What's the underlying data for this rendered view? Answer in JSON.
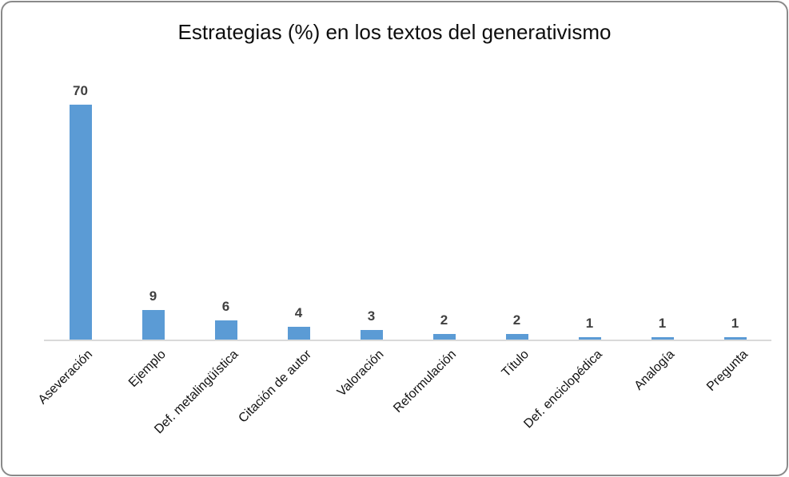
{
  "chart_data": {
    "type": "bar",
    "title": "Estrategias (%) en los textos del generativismo",
    "categories": [
      "Aseveración",
      "Ejemplo",
      "Def. metalingüística",
      "Citación de autor",
      "Valoración",
      "Reformulación",
      "Título",
      "Def. enciclopédica",
      "Analogía",
      "Pregunta"
    ],
    "values": [
      70,
      9,
      6,
      4,
      3,
      2,
      2,
      1,
      1,
      1
    ],
    "xlabel": "",
    "ylabel": "",
    "ylim": [
      0,
      70
    ],
    "grid": false,
    "legend": false,
    "value_labels_shown": true,
    "x_label_rotation_deg": 45,
    "bar_color": "#5B9BD5",
    "value_label_color": "#404040",
    "category_label_color": "#111111",
    "axis_line_color": "#D9D9D9",
    "title_color": "#0d0d0d",
    "frame_border_color": "#8a8a8a",
    "background_color": "#FFFFFF"
  }
}
